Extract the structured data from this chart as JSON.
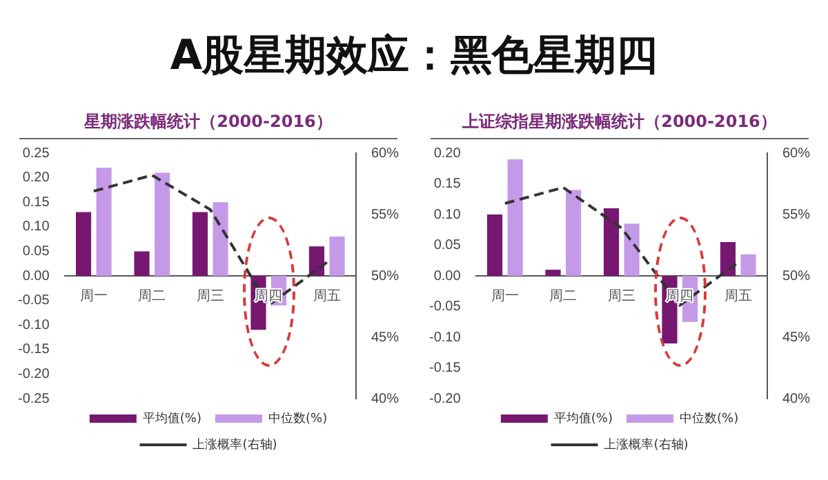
{
  "chart_data": [
    {
      "type": "bar",
      "title": "A股星期效应：黑色星期四",
      "subtitle": "星期涨跌幅统计（2000-2016）",
      "categories": [
        "周一",
        "周二",
        "周三",
        "周四",
        "周五"
      ],
      "series": [
        {
          "name": "平均值(%)",
          "color": "#76186f",
          "values": [
            0.13,
            0.05,
            0.13,
            -0.11,
            0.06
          ]
        },
        {
          "name": "中位数(%)",
          "color": "#c49ae8",
          "values": [
            0.22,
            0.21,
            0.15,
            -0.06,
            0.08
          ]
        },
        {
          "name": "上涨概率(右轴)",
          "type": "line",
          "axis": "y2",
          "color": "#333333",
          "line_style": "dashed",
          "values": [
            56.9,
            58.2,
            55.4,
            47.6,
            51.1
          ]
        }
      ],
      "ylim": [
        -0.25,
        0.25
      ],
      "yticks": [
        {
          "value": -0.25,
          "label": "-0.25"
        },
        {
          "value": -0.2,
          "label": "-0.20"
        },
        {
          "value": -0.15,
          "label": "-0.15"
        },
        {
          "value": -0.1,
          "label": "-0.10"
        },
        {
          "value": -0.05,
          "label": "-0.05"
        },
        {
          "value": 0,
          "label": "0.00"
        },
        {
          "value": 0.05,
          "label": "0.05"
        },
        {
          "value": 0.1,
          "label": "0.10"
        },
        {
          "value": 0.15,
          "label": "0.15"
        },
        {
          "value": 0.2,
          "label": "0.20"
        },
        {
          "value": 0.25,
          "label": "0.25"
        }
      ],
      "y2lim": [
        40,
        60
      ],
      "y2ticks": [
        {
          "value": 40,
          "label": "40%"
        },
        {
          "value": 45,
          "label": "45%"
        },
        {
          "value": 50,
          "label": "50%"
        },
        {
          "value": 55,
          "label": "55%"
        },
        {
          "value": 60,
          "label": "60%"
        }
      ],
      "grid": false,
      "legend": "bottom"
    },
    {
      "type": "bar",
      "title": "上证综指星期涨跌幅统计（2000-2016）",
      "categories": [
        "周一",
        "周二",
        "周三",
        "周四",
        "周五"
      ],
      "series": [
        {
          "name": "平均值(%)",
          "color": "#76186f",
          "values": [
            0.1,
            0.01,
            0.11,
            -0.11,
            0.055
          ]
        },
        {
          "name": "中位数(%)",
          "color": "#c49ae8",
          "values": [
            0.19,
            0.14,
            0.085,
            -0.075,
            0.035
          ]
        },
        {
          "name": "上涨概率(右轴)",
          "type": "line",
          "axis": "y2",
          "color": "#333333",
          "line_style": "dashed",
          "values": [
            55.9,
            57.2,
            53.9,
            47.6,
            51.1
          ]
        }
      ],
      "ylim": [
        -0.2,
        0.2
      ],
      "yticks": [
        {
          "value": -0.2,
          "label": "-0.20"
        },
        {
          "value": -0.15,
          "label": "-0.15"
        },
        {
          "value": -0.1,
          "label": "-0.10"
        },
        {
          "value": -0.05,
          "label": "-0.05"
        },
        {
          "value": 0,
          "label": "0.00"
        },
        {
          "value": 0.05,
          "label": "0.05"
        },
        {
          "value": 0.1,
          "label": "0.10"
        },
        {
          "value": 0.15,
          "label": "0.15"
        },
        {
          "value": 0.2,
          "label": "0.20"
        }
      ],
      "y2lim": [
        40,
        60
      ],
      "y2ticks": [
        {
          "value": 40,
          "label": "40%"
        },
        {
          "value": 45,
          "label": "45%"
        },
        {
          "value": 50,
          "label": "50%"
        },
        {
          "value": 55,
          "label": "55%"
        },
        {
          "value": 60,
          "label": "60%"
        }
      ],
      "grid": false,
      "legend": "bottom"
    }
  ]
}
